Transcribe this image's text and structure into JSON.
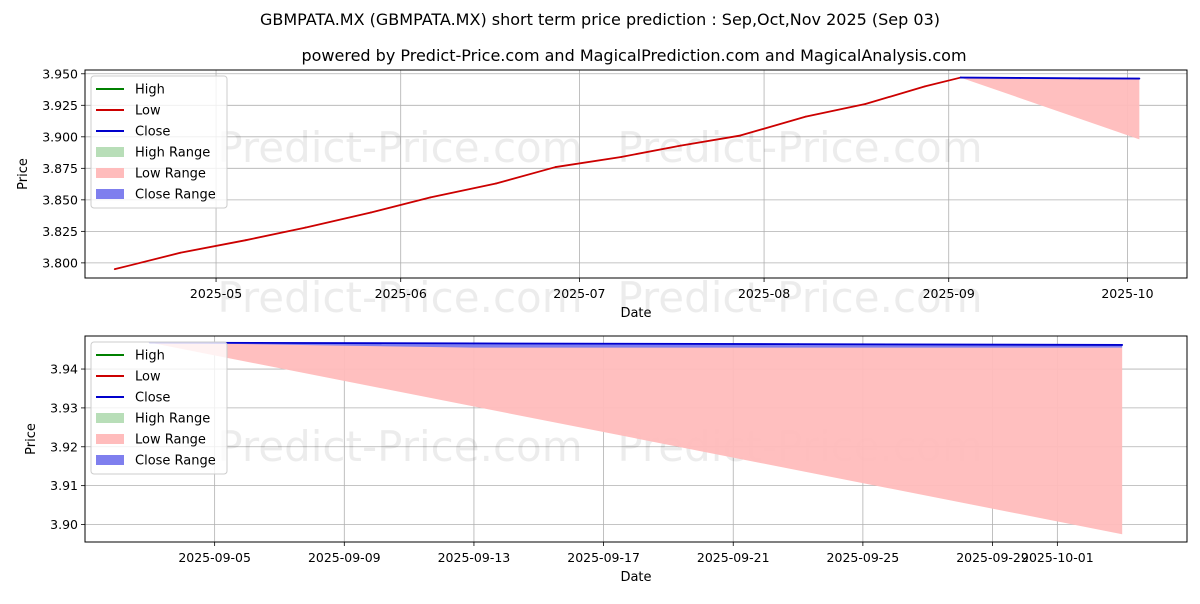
{
  "title_line1": "GBMPATA.MX (GBMPATA.MX) short term price prediction : Sep,Oct,Nov 2025 (Sep 03)",
  "title_line2": "powered by Predict-Price.com and MagicalPrediction.com and MagicalAnalysis.com",
  "watermark": "Predict-Price.com",
  "legend": [
    {
      "label": "High",
      "color": "#008000",
      "kind": "line"
    },
    {
      "label": "Low",
      "color": "#cc0000",
      "kind": "line"
    },
    {
      "label": "Close",
      "color": "#0000cc",
      "kind": "line"
    },
    {
      "label": "High Range",
      "color": "#b8deb8",
      "kind": "patch"
    },
    {
      "label": "Low Range",
      "color": "#ffbcbc",
      "kind": "patch"
    },
    {
      "label": "Close Range",
      "color": "#7f7fee",
      "kind": "patch"
    }
  ],
  "chart_data": [
    {
      "type": "line",
      "xlabel": "Date",
      "ylabel": "Price",
      "x_ticks": [
        "2025-05",
        "2025-06",
        "2025-07",
        "2025-08",
        "2025-09",
        "2025-10"
      ],
      "y_ticks": [
        "3.800",
        "3.825",
        "3.850",
        "3.875",
        "3.900",
        "3.925",
        "3.950"
      ],
      "xlim": [
        "2025-04-09",
        "2025-10-11"
      ],
      "ylim": [
        3.788,
        3.953
      ],
      "grid": true,
      "legend_position": "top-left",
      "series": [
        {
          "name": "Low",
          "color": "#cc0000",
          "x": [
            "2025-04-14",
            "2025-04-25",
            "2025-05-06",
            "2025-05-16",
            "2025-05-27",
            "2025-06-06",
            "2025-06-17",
            "2025-06-27",
            "2025-07-08",
            "2025-07-18",
            "2025-07-28",
            "2025-08-08",
            "2025-08-18",
            "2025-08-28",
            "2025-09-03"
          ],
          "y": [
            3.795,
            3.808,
            3.818,
            3.828,
            3.84,
            3.852,
            3.863,
            3.876,
            3.884,
            3.893,
            3.901,
            3.916,
            3.926,
            3.94,
            3.947
          ]
        },
        {
          "name": "Close",
          "color": "#0000cc",
          "x": [
            "2025-09-03",
            "2025-09-13",
            "2025-09-23",
            "2025-10-03"
          ],
          "y": [
            3.947,
            3.9467,
            3.9464,
            3.9462
          ]
        }
      ],
      "ranges": [
        {
          "name": "Low Range",
          "color": "#ffbcbc",
          "x": [
            "2025-09-03",
            "2025-10-03"
          ],
          "upper": [
            3.947,
            3.946
          ],
          "lower": [
            3.947,
            3.898
          ]
        }
      ]
    },
    {
      "type": "line",
      "xlabel": "Date",
      "ylabel": "Price",
      "x_ticks": [
        "2025-09-05",
        "2025-09-09",
        "2025-09-13",
        "2025-09-17",
        "2025-09-21",
        "2025-09-25",
        "2025-09-29",
        "2025-10-01"
      ],
      "y_ticks": [
        "3.90",
        "3.91",
        "3.92",
        "3.93",
        "3.94"
      ],
      "xlim": [
        "2025-09-01",
        "2025-10-05"
      ],
      "ylim": [
        3.8955,
        3.9485
      ],
      "grid": true,
      "legend_position": "top-left",
      "series": [
        {
          "name": "Close",
          "color": "#0000cc",
          "x": [
            "2025-09-03",
            "2025-09-13",
            "2025-09-23",
            "2025-10-03"
          ],
          "y": [
            3.9468,
            3.9466,
            3.9464,
            3.9462
          ]
        }
      ],
      "ranges": [
        {
          "name": "Low Range",
          "color": "#ffbcbc",
          "x": [
            "2025-09-03",
            "2025-10-03"
          ],
          "upper": [
            3.9468,
            3.9455
          ],
          "lower": [
            3.9468,
            3.8975
          ]
        },
        {
          "name": "Close Range",
          "color": "#7f7fee",
          "x": [
            "2025-09-03",
            "2025-09-13",
            "2025-10-03"
          ],
          "upper": [
            3.9468,
            3.9466,
            3.9462
          ],
          "lower": [
            3.9468,
            3.9455,
            3.9455
          ]
        }
      ]
    }
  ]
}
